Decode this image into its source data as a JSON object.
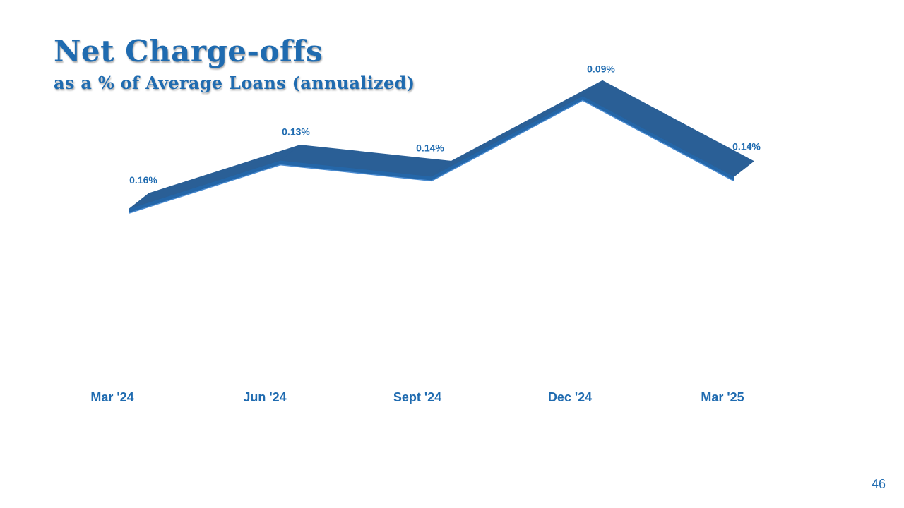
{
  "slide": {
    "title": "Net Charge-offs",
    "subtitle": "as a % of Average Loans (annualized)",
    "page_number": "46"
  },
  "chart_data": {
    "type": "line",
    "categories": [
      "Mar '24",
      "Jun '24",
      "Sept '24",
      "Dec '24",
      "Mar '25"
    ],
    "values": [
      0.16,
      0.13,
      0.14,
      0.09,
      0.14
    ],
    "labels": [
      "0.16%",
      "0.13%",
      "0.14%",
      "0.09%",
      "0.14%"
    ],
    "title": "",
    "xlabel": "",
    "ylabel": "",
    "style": "3d-ribbon",
    "grid": false,
    "legend": "none",
    "colors": {
      "ribbon_top": "#2a5f96",
      "ribbon_front": "#2466a8",
      "ribbon_edge": "#4a8bd0",
      "text": "#1f6bb0"
    }
  }
}
